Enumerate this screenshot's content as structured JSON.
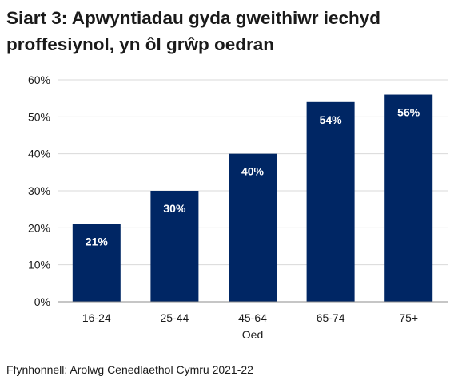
{
  "title": "Siart 3: Apwyntiadau gyda gweithiwr iechyd proffesiynol, yn ôl grŵp oedran",
  "source": "Ffynhonnell: Arolwg Cenedlaethol Cymru 2021-22",
  "colors": {
    "bar": "#002664",
    "grid": "#d9d9d9",
    "axis": "#8c8c8c"
  },
  "chart_data": {
    "type": "bar",
    "title": "Siart 3: Apwyntiadau gyda gweithiwr iechyd proffesiynol, yn ôl grŵp oedran",
    "categories": [
      "16-24",
      "25-44",
      "45-64",
      "65-74",
      "75+"
    ],
    "values": [
      21,
      30,
      40,
      54,
      56
    ],
    "value_labels": [
      "21%",
      "30%",
      "40%",
      "54%",
      "56%"
    ],
    "xlabel": "Oed",
    "ylabel": "",
    "ylim": [
      0,
      60
    ],
    "yticks": [
      0,
      10,
      20,
      30,
      40,
      50,
      60
    ],
    "ytick_labels": [
      "0%",
      "10%",
      "20%",
      "30%",
      "40%",
      "50%",
      "60%"
    ],
    "grid": true,
    "legend": "none"
  }
}
